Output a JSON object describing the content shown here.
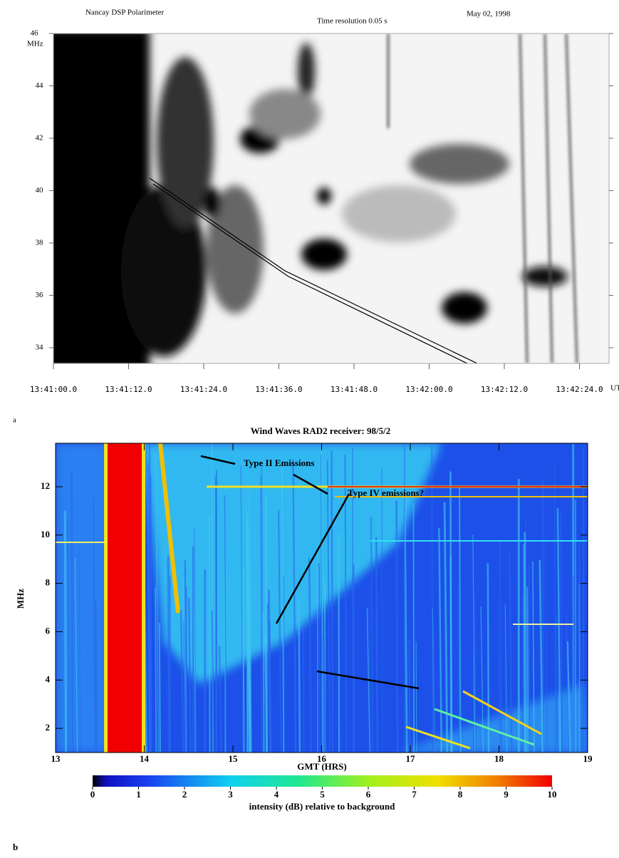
{
  "chart_data": [
    {
      "type": "spectrogram",
      "title": "Nancay DSP Polarimeter",
      "subtitle": "Time resolution  0.05 s",
      "date": "May 02, 1998",
      "panel_label": "a",
      "ylabel": "MHz",
      "x_unit": "UT",
      "x": [
        "13:41:00.0",
        "13:41:12.0",
        "13:41:24.0",
        "13:41:36.0",
        "13:41:48.0",
        "13:42:00.0",
        "13:42:12.0",
        "13:42:24.0"
      ],
      "ylim": [
        33.4,
        46
      ],
      "yticks": [
        34,
        36,
        38,
        40,
        42,
        44,
        46
      ]
    },
    {
      "type": "spectrogram",
      "title": "Wind Waves RAD2 receiver: 98/5/2",
      "panel_label": "b",
      "xlabel": "GMT (HRS)",
      "ylabel": "MHz",
      "xlim": [
        13,
        19
      ],
      "xticks": [
        13,
        14,
        15,
        16,
        17,
        18,
        19
      ],
      "ylim": [
        1,
        13.8
      ],
      "yticks": [
        2,
        4,
        6,
        8,
        10,
        12
      ],
      "annotations": [
        "Type IV emissions?",
        "Type II Emissions"
      ],
      "colorbar": {
        "lim": [
          0,
          10
        ],
        "ticks": [
          0,
          1,
          2,
          3,
          4,
          5,
          6,
          7,
          8,
          9,
          10
        ],
        "label": "intensity (dB) relative to background"
      }
    }
  ]
}
